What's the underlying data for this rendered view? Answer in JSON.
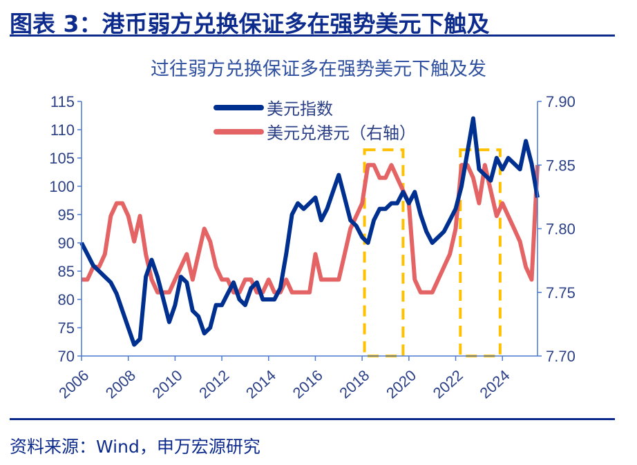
{
  "header": {
    "title": "图表 3：港币弱方兑换保证多在强势美元下触及"
  },
  "source": "资料来源：Wind，申万宏源研究",
  "chart_data": {
    "type": "line",
    "title": "过往弱方兑换保证多在强势美元下触及发",
    "xlabel": "",
    "ylabel": "",
    "y2label": "",
    "x_ticks": [
      "2006",
      "2008",
      "2010",
      "2012",
      "2014",
      "2016",
      "2018",
      "2020",
      "2022",
      "2024"
    ],
    "xlim": [
      2006,
      2025.5
    ],
    "ylim": [
      70,
      115
    ],
    "y_ticks": [
      "70",
      "75",
      "80",
      "85",
      "90",
      "95",
      "100",
      "105",
      "110",
      "115"
    ],
    "y2lim": [
      7.7,
      7.9
    ],
    "y2_ticks": [
      "7.70",
      "7.75",
      "7.80",
      "7.85",
      "7.90"
    ],
    "grid": false,
    "legend": "top-center",
    "x": [
      2006,
      2006.25,
      2006.5,
      2006.75,
      2007,
      2007.25,
      2007.5,
      2007.75,
      2008,
      2008.25,
      2008.5,
      2008.75,
      2009,
      2009.25,
      2009.5,
      2009.75,
      2010,
      2010.25,
      2010.5,
      2010.75,
      2011,
      2011.25,
      2011.5,
      2011.75,
      2012,
      2012.25,
      2012.5,
      2012.75,
      2013,
      2013.25,
      2013.5,
      2013.75,
      2014,
      2014.25,
      2014.5,
      2014.75,
      2015,
      2015.25,
      2015.5,
      2015.75,
      2016,
      2016.25,
      2016.5,
      2016.75,
      2017,
      2017.25,
      2017.5,
      2017.75,
      2018,
      2018.25,
      2018.5,
      2018.75,
      2019,
      2019.25,
      2019.5,
      2019.75,
      2020,
      2020.25,
      2020.5,
      2020.75,
      2021,
      2021.25,
      2021.5,
      2021.75,
      2022,
      2022.25,
      2022.5,
      2022.75,
      2023,
      2023.25,
      2023.5,
      2023.75,
      2024,
      2024.25,
      2024.5,
      2024.75,
      2025,
      2025.25,
      2025.5
    ],
    "series": [
      {
        "name": "美元指数",
        "axis": "left",
        "color": "#00308f",
        "values": [
          90,
          88,
          86,
          85,
          84,
          83,
          81,
          78,
          75,
          72,
          73,
          84,
          87,
          84,
          80,
          76,
          79,
          84,
          83,
          78,
          77,
          74,
          75,
          79,
          79,
          81,
          83,
          80,
          79,
          82,
          83,
          80,
          80,
          80,
          82,
          88,
          95,
          97,
          96,
          97,
          98,
          94,
          96,
          99,
          102,
          98,
          94,
          93,
          91,
          90,
          94,
          96,
          96,
          97,
          97,
          99,
          97,
          99,
          95,
          92,
          90,
          91,
          92,
          94,
          96,
          100,
          106,
          112,
          103,
          102,
          101,
          105,
          103,
          105,
          104,
          103,
          108,
          104,
          98
        ]
      },
      {
        "name": "美元兑港元（右轴）",
        "axis": "right",
        "color": "#e46364",
        "values": [
          7.76,
          7.76,
          7.77,
          7.77,
          7.78,
          7.81,
          7.82,
          7.82,
          7.81,
          7.79,
          7.81,
          7.78,
          7.76,
          7.75,
          7.75,
          7.75,
          7.76,
          7.77,
          7.78,
          7.76,
          7.78,
          7.8,
          7.79,
          7.77,
          7.76,
          7.76,
          7.75,
          7.75,
          7.76,
          7.76,
          7.75,
          7.75,
          7.76,
          7.75,
          7.75,
          7.76,
          7.75,
          7.75,
          7.75,
          7.75,
          7.78,
          7.76,
          7.76,
          7.76,
          7.76,
          7.78,
          7.8,
          7.81,
          7.82,
          7.85,
          7.85,
          7.84,
          7.84,
          7.85,
          7.84,
          7.83,
          7.82,
          7.76,
          7.75,
          7.75,
          7.75,
          7.76,
          7.77,
          7.78,
          7.8,
          7.85,
          7.85,
          7.84,
          7.82,
          7.85,
          7.83,
          7.81,
          7.82,
          7.81,
          7.8,
          7.79,
          7.77,
          7.76,
          7.85
        ]
      }
    ],
    "highlights": [
      {
        "x": [
          2018.1,
          2019.75
        ],
        "y2": [
          7.7,
          7.862
        ],
        "color": "#ffc000",
        "style": "dashed"
      },
      {
        "x": [
          2022.2,
          2023.9
        ],
        "y2": [
          7.7,
          7.862
        ],
        "color": "#ffc000",
        "style": "dashed"
      }
    ],
    "axis_color": "#4a78d0"
  }
}
